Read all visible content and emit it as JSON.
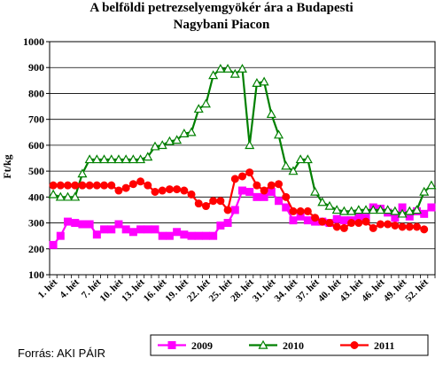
{
  "chart_data": {
    "type": "line",
    "title_line1": "A belföldi petrezselyemgyökér ára a Budapesti",
    "title_line2": "Nagybani Piacon",
    "ylabel": "Ft/kg",
    "ylim": [
      100,
      1000
    ],
    "yticks": [
      100,
      200,
      300,
      400,
      500,
      600,
      700,
      800,
      900,
      1000
    ],
    "grid": true,
    "legend_position": "bottom",
    "x": [
      1,
      2,
      3,
      4,
      5,
      6,
      7,
      8,
      9,
      10,
      11,
      12,
      13,
      14,
      15,
      16,
      17,
      18,
      19,
      20,
      21,
      22,
      23,
      24,
      25,
      26,
      27,
      28,
      29,
      30,
      31,
      32,
      33,
      34,
      35,
      36,
      37,
      38,
      39,
      40,
      41,
      42,
      43,
      44,
      45,
      46,
      47,
      48,
      49,
      50,
      51,
      52,
      53
    ],
    "xticklabels": [
      "1. hét",
      "4. hét",
      "7. hét",
      "10. hét",
      "13. hét",
      "16. hét",
      "19. hét",
      "22. hét",
      "25. hét",
      "28. hét",
      "31. hét",
      "34. hét",
      "37. hét",
      "40. hét",
      "43. hét",
      "46. hét",
      "49. hét",
      "52. hét"
    ],
    "xtick_weeks": [
      1,
      4,
      7,
      10,
      13,
      16,
      19,
      22,
      25,
      28,
      31,
      34,
      37,
      40,
      43,
      46,
      49,
      52
    ],
    "series": [
      {
        "name": "2009",
        "color": "#ff00ff",
        "marker": "square",
        "values": [
          215,
          250,
          305,
          300,
          295,
          295,
          255,
          275,
          275,
          295,
          275,
          265,
          275,
          275,
          275,
          250,
          250,
          265,
          255,
          250,
          250,
          250,
          250,
          290,
          300,
          350,
          425,
          420,
          400,
          400,
          420,
          385,
          360,
          310,
          325,
          310,
          305,
          305,
          300,
          315,
          310,
          310,
          325,
          320,
          360,
          355,
          340,
          320,
          360,
          325,
          345,
          335,
          360
        ]
      },
      {
        "name": "2010",
        "color": "#008000",
        "marker": "triangle",
        "values": [
          410,
          400,
          400,
          400,
          490,
          545,
          545,
          545,
          545,
          545,
          545,
          545,
          545,
          555,
          595,
          600,
          615,
          620,
          645,
          650,
          740,
          760,
          870,
          895,
          895,
          875,
          895,
          600,
          840,
          845,
          720,
          640,
          520,
          500,
          545,
          545,
          420,
          380,
          365,
          350,
          345,
          345,
          350,
          350,
          350,
          350,
          350,
          345,
          335,
          345,
          350,
          420,
          445
        ]
      },
      {
        "name": "2011",
        "color": "#ff0000",
        "marker": "circle",
        "values": [
          445,
          445,
          445,
          445,
          445,
          445,
          445,
          445,
          445,
          425,
          435,
          450,
          460,
          445,
          420,
          425,
          430,
          430,
          425,
          410,
          375,
          365,
          385,
          385,
          350,
          470,
          480,
          495,
          445,
          425,
          445,
          450,
          400,
          345,
          345,
          345,
          320,
          305,
          300,
          285,
          280,
          300,
          300,
          305,
          280,
          295,
          295,
          290,
          285,
          285,
          285,
          275,
          null
        ]
      }
    ]
  },
  "source": "Forrás: AKI PÁIR"
}
